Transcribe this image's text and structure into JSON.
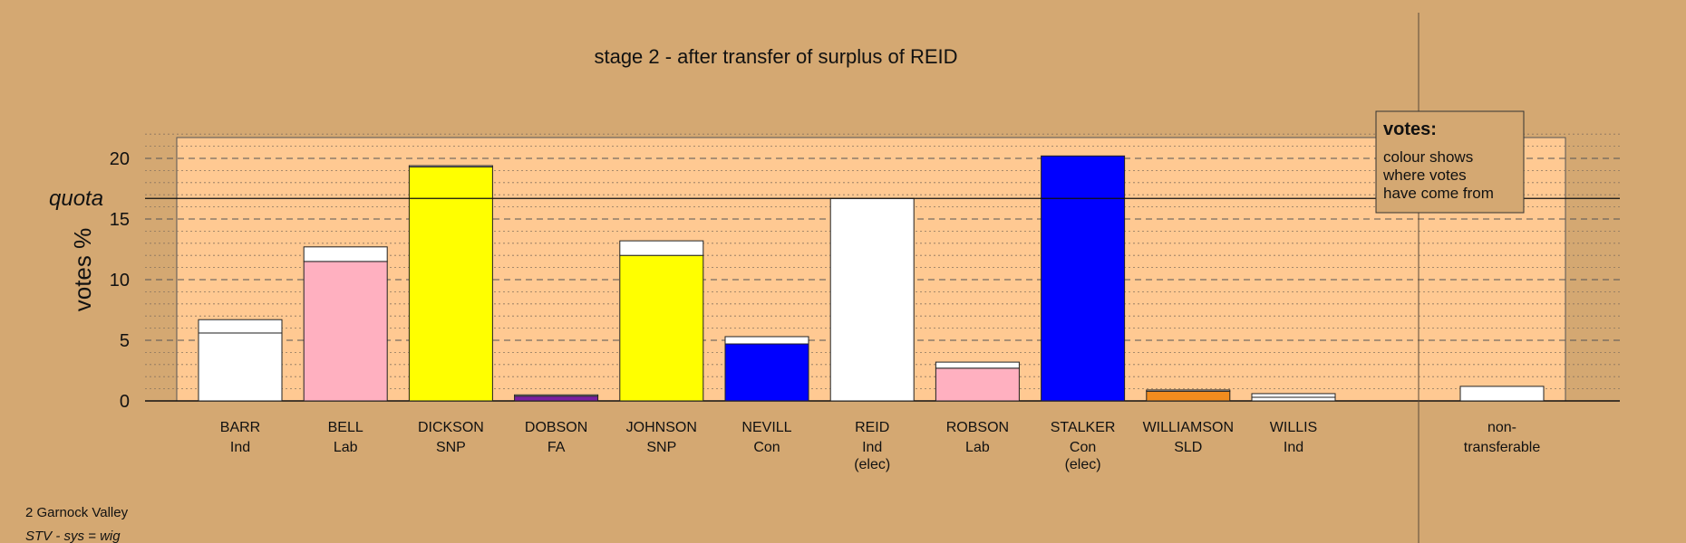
{
  "footer": {
    "line1": "2 Garnock Valley",
    "line2": "STV - sys = wig"
  },
  "legend": {
    "title": "votes:",
    "lines": [
      "colour shows",
      "where votes",
      "have come from"
    ]
  },
  "colors": {
    "background": "#D4A872",
    "plot_background": "#FFC992",
    "Ind": "#FFFFFF",
    "Lab": "#FFB0C0",
    "SNP": "#FFFF00",
    "FA": "#7A1FA0",
    "Con": "#0000FF",
    "SLD": "#F28C1E",
    "transfer": "#FFFFFF"
  },
  "chart_data": {
    "type": "bar",
    "stacked": true,
    "title": "stage 2 - after transfer of surplus of REID",
    "ylabel": "votes %",
    "ylim": [
      0,
      22
    ],
    "yticks": [
      0,
      5,
      10,
      15,
      20
    ],
    "quota": 16.7,
    "quota_label": "quota",
    "grid": true,
    "legend_position": "top-right",
    "categories": [
      {
        "name": "BARR",
        "party": "Ind",
        "note": ""
      },
      {
        "name": "BELL",
        "party": "Lab",
        "note": ""
      },
      {
        "name": "DICKSON",
        "party": "SNP",
        "note": ""
      },
      {
        "name": "DOBSON",
        "party": "FA",
        "note": ""
      },
      {
        "name": "JOHNSON",
        "party": "SNP",
        "note": ""
      },
      {
        "name": "NEVILL",
        "party": "Con",
        "note": ""
      },
      {
        "name": "REID",
        "party": "Ind",
        "note": "(elec)"
      },
      {
        "name": "ROBSON",
        "party": "Lab",
        "note": ""
      },
      {
        "name": "STALKER",
        "party": "Con",
        "note": "(elec)"
      },
      {
        "name": "WILLIAMSON",
        "party": "SLD",
        "note": ""
      },
      {
        "name": "WILLIS",
        "party": "Ind",
        "note": ""
      }
    ],
    "first_preference": [
      5.6,
      11.5,
      19.3,
      0.4,
      12.0,
      4.7,
      16.7,
      2.7,
      20.2,
      0.8,
      0.3
    ],
    "transfer_from_reid": [
      1.1,
      1.2,
      0.1,
      0.1,
      1.2,
      0.6,
      0.0,
      0.5,
      0.0,
      0.1,
      0.3
    ],
    "non_transferable": {
      "label_lines": [
        "non-",
        "transferable"
      ],
      "value": 1.2
    }
  }
}
